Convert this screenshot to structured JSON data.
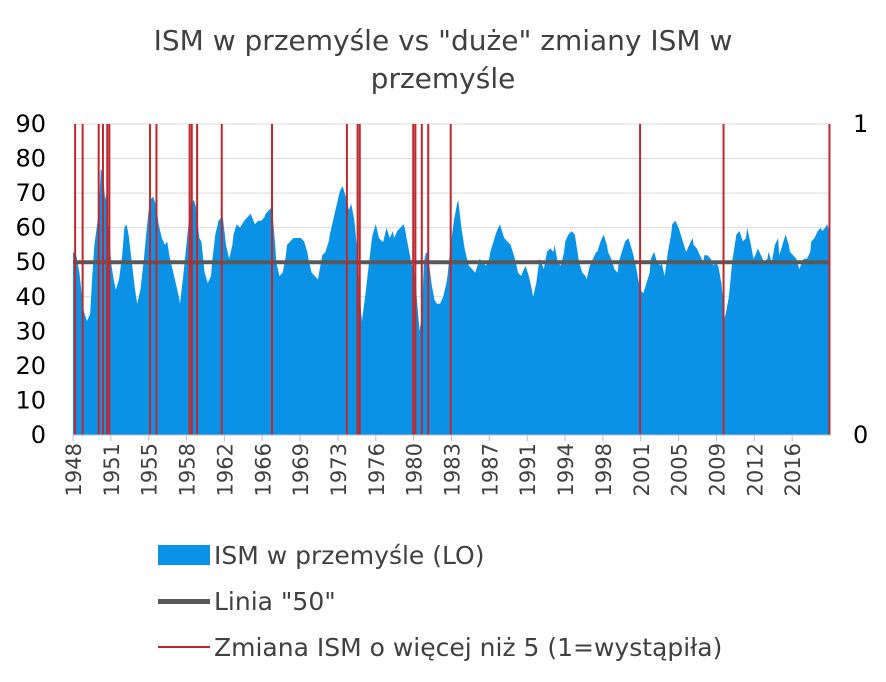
{
  "chart_data": {
    "type": "area",
    "title_line1": "ISM w przemyśle vs \"duże\" zmiany ISM w",
    "title_line2": "przemyśle",
    "x_ticks": [
      "1948",
      "1951",
      "1955",
      "1958",
      "1962",
      "1966",
      "1969",
      "1973",
      "1976",
      "1980",
      "1983",
      "1987",
      "1991",
      "1994",
      "1998",
      "2001",
      "2005",
      "2009",
      "2012",
      "2016"
    ],
    "x_range": [
      1948.0,
      2018.75
    ],
    "y_left": {
      "min": 0,
      "max": 90,
      "ticks": [
        0,
        10,
        20,
        30,
        40,
        50,
        60,
        70,
        80,
        90
      ]
    },
    "y_right": {
      "min": 0,
      "max": 1,
      "ticks": [
        0,
        1
      ]
    },
    "series": [
      {
        "name": "ISM w przemyśle (LO)",
        "kind": "area",
        "axis": "left",
        "color": "#0a93e6",
        "points": [
          [
            1948.0,
            53
          ],
          [
            1948.3,
            52
          ],
          [
            1948.6,
            47
          ],
          [
            1948.8,
            41
          ],
          [
            1949.0,
            36
          ],
          [
            1949.3,
            33
          ],
          [
            1949.6,
            35
          ],
          [
            1949.8,
            46
          ],
          [
            1950.0,
            55
          ],
          [
            1950.3,
            62
          ],
          [
            1950.5,
            70
          ],
          [
            1950.6,
            77
          ],
          [
            1950.8,
            76
          ],
          [
            1951.0,
            68
          ],
          [
            1951.1,
            70
          ],
          [
            1951.3,
            60
          ],
          [
            1951.6,
            49
          ],
          [
            1951.8,
            45
          ],
          [
            1952.0,
            42
          ],
          [
            1952.3,
            45
          ],
          [
            1952.6,
            52
          ],
          [
            1952.8,
            60
          ],
          [
            1953.0,
            61
          ],
          [
            1953.2,
            58
          ],
          [
            1953.5,
            50
          ],
          [
            1953.8,
            42
          ],
          [
            1954.0,
            38
          ],
          [
            1954.3,
            42
          ],
          [
            1954.6,
            50
          ],
          [
            1954.8,
            57
          ],
          [
            1955.0,
            63
          ],
          [
            1955.2,
            68
          ],
          [
            1955.5,
            69
          ],
          [
            1955.8,
            66
          ],
          [
            1956.0,
            61
          ],
          [
            1956.3,
            57
          ],
          [
            1956.6,
            55
          ],
          [
            1956.8,
            56
          ],
          [
            1957.0,
            52
          ],
          [
            1957.3,
            48
          ],
          [
            1957.6,
            44
          ],
          [
            1957.9,
            40
          ],
          [
            1958.0,
            38
          ],
          [
            1958.3,
            46
          ],
          [
            1958.6,
            55
          ],
          [
            1958.9,
            64
          ],
          [
            1959.0,
            67
          ],
          [
            1959.3,
            68
          ],
          [
            1959.5,
            66
          ],
          [
            1959.8,
            57
          ],
          [
            1960.0,
            56
          ],
          [
            1960.3,
            47
          ],
          [
            1960.6,
            44
          ],
          [
            1960.9,
            46
          ],
          [
            1961.0,
            50
          ],
          [
            1961.3,
            58
          ],
          [
            1961.6,
            62
          ],
          [
            1961.9,
            63
          ],
          [
            1962.0,
            63
          ],
          [
            1962.3,
            55
          ],
          [
            1962.6,
            51
          ],
          [
            1962.9,
            55
          ],
          [
            1963.0,
            58
          ],
          [
            1963.3,
            61
          ],
          [
            1963.6,
            60
          ],
          [
            1964.0,
            62
          ],
          [
            1964.3,
            63
          ],
          [
            1964.6,
            64
          ],
          [
            1965.0,
            61
          ],
          [
            1965.3,
            62
          ],
          [
            1965.6,
            62
          ],
          [
            1965.9,
            63
          ],
          [
            1966.0,
            64
          ],
          [
            1966.3,
            65
          ],
          [
            1966.6,
            66
          ],
          [
            1966.9,
            55
          ],
          [
            1967.0,
            50
          ],
          [
            1967.3,
            46
          ],
          [
            1967.6,
            47
          ],
          [
            1967.9,
            52
          ],
          [
            1968.0,
            55
          ],
          [
            1968.3,
            56
          ],
          [
            1968.6,
            57
          ],
          [
            1969.0,
            57
          ],
          [
            1969.3,
            57
          ],
          [
            1969.6,
            56
          ],
          [
            1969.9,
            53
          ],
          [
            1970.0,
            51
          ],
          [
            1970.3,
            47
          ],
          [
            1970.6,
            46
          ],
          [
            1970.9,
            45
          ],
          [
            1971.0,
            47
          ],
          [
            1971.3,
            52
          ],
          [
            1971.6,
            53
          ],
          [
            1971.9,
            56
          ],
          [
            1972.0,
            58
          ],
          [
            1972.3,
            62
          ],
          [
            1972.6,
            66
          ],
          [
            1972.9,
            70
          ],
          [
            1973.0,
            71
          ],
          [
            1973.2,
            72
          ],
          [
            1973.5,
            69
          ],
          [
            1973.8,
            65
          ],
          [
            1974.0,
            67
          ],
          [
            1974.3,
            62
          ],
          [
            1974.6,
            52
          ],
          [
            1974.8,
            40
          ],
          [
            1975.0,
            33
          ],
          [
            1975.3,
            40
          ],
          [
            1975.6,
            48
          ],
          [
            1975.9,
            56
          ],
          [
            1976.0,
            58
          ],
          [
            1976.3,
            61
          ],
          [
            1976.6,
            57
          ],
          [
            1976.9,
            56
          ],
          [
            1977.0,
            56
          ],
          [
            1977.3,
            60
          ],
          [
            1977.6,
            57
          ],
          [
            1977.9,
            59
          ],
          [
            1978.0,
            57
          ],
          [
            1978.3,
            59
          ],
          [
            1978.6,
            60
          ],
          [
            1978.9,
            61
          ],
          [
            1979.0,
            60
          ],
          [
            1979.3,
            55
          ],
          [
            1979.6,
            50
          ],
          [
            1979.9,
            47
          ],
          [
            1980.0,
            45
          ],
          [
            1980.2,
            37
          ],
          [
            1980.4,
            30
          ],
          [
            1980.6,
            35
          ],
          [
            1980.8,
            50
          ],
          [
            1981.0,
            53
          ],
          [
            1981.2,
            52
          ],
          [
            1981.5,
            44
          ],
          [
            1981.8,
            39
          ],
          [
            1982.0,
            38
          ],
          [
            1982.3,
            38
          ],
          [
            1982.6,
            40
          ],
          [
            1982.9,
            44
          ],
          [
            1983.0,
            46
          ],
          [
            1983.3,
            55
          ],
          [
            1983.6,
            62
          ],
          [
            1983.9,
            67
          ],
          [
            1984.0,
            68
          ],
          [
            1984.3,
            60
          ],
          [
            1984.6,
            54
          ],
          [
            1984.9,
            50
          ],
          [
            1985.0,
            49
          ],
          [
            1985.3,
            48
          ],
          [
            1985.6,
            47
          ],
          [
            1985.9,
            50
          ],
          [
            1986.0,
            51
          ],
          [
            1986.3,
            50
          ],
          [
            1986.6,
            49
          ],
          [
            1986.9,
            51
          ],
          [
            1987.0,
            53
          ],
          [
            1987.3,
            56
          ],
          [
            1987.6,
            59
          ],
          [
            1987.9,
            61
          ],
          [
            1988.0,
            60
          ],
          [
            1988.3,
            57
          ],
          [
            1988.6,
            56
          ],
          [
            1988.9,
            55
          ],
          [
            1989.0,
            54
          ],
          [
            1989.3,
            51
          ],
          [
            1989.6,
            47
          ],
          [
            1989.9,
            46
          ],
          [
            1990.0,
            47
          ],
          [
            1990.3,
            49
          ],
          [
            1990.6,
            46
          ],
          [
            1990.9,
            42
          ],
          [
            1991.0,
            40
          ],
          [
            1991.3,
            44
          ],
          [
            1991.6,
            51
          ],
          [
            1991.9,
            49
          ],
          [
            1992.0,
            48
          ],
          [
            1992.3,
            53
          ],
          [
            1992.6,
            54
          ],
          [
            1992.9,
            53
          ],
          [
            1993.0,
            55
          ],
          [
            1993.3,
            50
          ],
          [
            1993.6,
            49
          ],
          [
            1993.9,
            53
          ],
          [
            1994.0,
            56
          ],
          [
            1994.3,
            58
          ],
          [
            1994.6,
            59
          ],
          [
            1994.9,
            58
          ],
          [
            1995.0,
            56
          ],
          [
            1995.3,
            50
          ],
          [
            1995.6,
            47
          ],
          [
            1995.9,
            46
          ],
          [
            1996.0,
            45
          ],
          [
            1996.3,
            49
          ],
          [
            1996.6,
            51
          ],
          [
            1996.9,
            53
          ],
          [
            1997.0,
            53
          ],
          [
            1997.3,
            56
          ],
          [
            1997.6,
            58
          ],
          [
            1997.9,
            55
          ],
          [
            1998.0,
            53
          ],
          [
            1998.3,
            51
          ],
          [
            1998.6,
            48
          ],
          [
            1998.9,
            47
          ],
          [
            1999.0,
            50
          ],
          [
            1999.3,
            53
          ],
          [
            1999.6,
            56
          ],
          [
            1999.9,
            57
          ],
          [
            2000.0,
            56
          ],
          [
            2000.3,
            53
          ],
          [
            2000.6,
            49
          ],
          [
            2000.9,
            44
          ],
          [
            2001.0,
            42
          ],
          [
            2001.3,
            41
          ],
          [
            2001.6,
            44
          ],
          [
            2001.9,
            47
          ],
          [
            2002.0,
            51
          ],
          [
            2002.3,
            53
          ],
          [
            2002.6,
            50
          ],
          [
            2002.9,
            49
          ],
          [
            2003.0,
            50
          ],
          [
            2003.3,
            46
          ],
          [
            2003.6,
            53
          ],
          [
            2003.9,
            58
          ],
          [
            2004.0,
            61
          ],
          [
            2004.3,
            62
          ],
          [
            2004.6,
            60
          ],
          [
            2004.9,
            57
          ],
          [
            2005.0,
            56
          ],
          [
            2005.3,
            53
          ],
          [
            2005.6,
            55
          ],
          [
            2005.9,
            57
          ],
          [
            2006.0,
            55
          ],
          [
            2006.3,
            54
          ],
          [
            2006.6,
            52
          ],
          [
            2006.9,
            50
          ],
          [
            2007.0,
            52
          ],
          [
            2007.3,
            52
          ],
          [
            2007.6,
            51
          ],
          [
            2007.9,
            49
          ],
          [
            2008.0,
            50
          ],
          [
            2008.3,
            49
          ],
          [
            2008.6,
            44
          ],
          [
            2008.9,
            34
          ],
          [
            2009.0,
            35
          ],
          [
            2009.3,
            40
          ],
          [
            2009.6,
            50
          ],
          [
            2009.9,
            56
          ],
          [
            2010.0,
            58
          ],
          [
            2010.3,
            59
          ],
          [
            2010.6,
            56
          ],
          [
            2010.9,
            57
          ],
          [
            2011.0,
            60
          ],
          [
            2011.3,
            56
          ],
          [
            2011.6,
            51
          ],
          [
            2011.9,
            53
          ],
          [
            2012.0,
            54
          ],
          [
            2012.3,
            52
          ],
          [
            2012.6,
            50
          ],
          [
            2012.9,
            51
          ],
          [
            2013.0,
            53
          ],
          [
            2013.3,
            50
          ],
          [
            2013.6,
            55
          ],
          [
            2013.9,
            57
          ],
          [
            2014.0,
            52
          ],
          [
            2014.3,
            55
          ],
          [
            2014.6,
            58
          ],
          [
            2014.9,
            55
          ],
          [
            2015.0,
            53
          ],
          [
            2015.3,
            52
          ],
          [
            2015.6,
            51
          ],
          [
            2015.9,
            48
          ],
          [
            2016.0,
            49
          ],
          [
            2016.3,
            51
          ],
          [
            2016.6,
            51
          ],
          [
            2016.9,
            53
          ],
          [
            2017.0,
            56
          ],
          [
            2017.3,
            57
          ],
          [
            2017.6,
            59
          ],
          [
            2017.9,
            60
          ],
          [
            2018.0,
            59
          ],
          [
            2018.3,
            60
          ],
          [
            2018.5,
            61
          ],
          [
            2018.75,
            58
          ]
        ]
      },
      {
        "name": "Linia \"50\"",
        "kind": "line",
        "axis": "left",
        "color": "#595959",
        "value": 50
      },
      {
        "name": "Zmiana ISM o więcej niż 5 (1=wystąpiła)",
        "kind": "events",
        "axis": "right",
        "color": "#c0272d",
        "events": [
          1948.2,
          1948.9,
          1950.4,
          1950.8,
          1951.2,
          1951.4,
          1955.2,
          1955.8,
          1958.9,
          1959.1,
          1959.6,
          1961.9,
          1966.6,
          1973.6,
          1974.6,
          1974.8,
          1979.8,
          1980.0,
          1980.6,
          1981.2,
          1983.3,
          2001.0,
          2008.8,
          2018.7
        ]
      }
    ]
  }
}
